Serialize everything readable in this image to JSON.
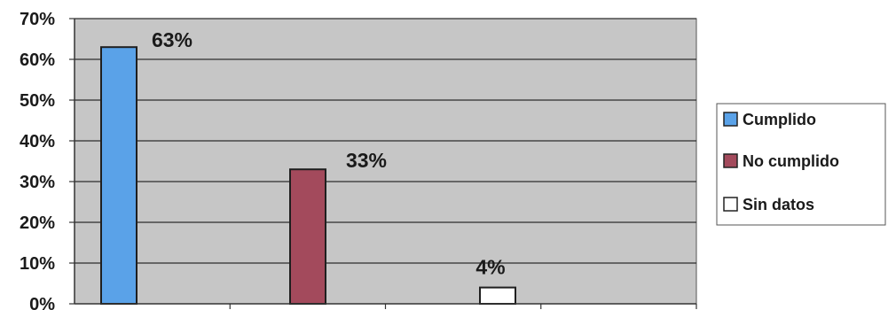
{
  "chart_data": {
    "type": "bar",
    "title": "",
    "xlabel": "",
    "ylabel": "",
    "categories": [
      "Cumplido",
      "No cumplido",
      "Sin datos"
    ],
    "values": [
      63,
      33,
      4
    ],
    "data_labels": [
      "63%",
      "33%",
      "4%"
    ],
    "ylim": [
      0,
      70
    ],
    "yticks": [
      0,
      10,
      20,
      30,
      40,
      50,
      60,
      70
    ],
    "ytick_labels": [
      "0%",
      "10%",
      "20%",
      "30%",
      "40%",
      "50%",
      "60%",
      "70%"
    ],
    "grid": true,
    "legend_position": "right",
    "legend": [
      {
        "label": "Cumplido",
        "color": "#5aa2e8"
      },
      {
        "label": "No cumplido",
        "color": "#a34a5c"
      },
      {
        "label": "Sin datos",
        "color": "#ffffff"
      }
    ],
    "colors": [
      "#5aa2e8",
      "#a34a5c",
      "#ffffff"
    ],
    "plot_background": "#c6c6c6"
  }
}
